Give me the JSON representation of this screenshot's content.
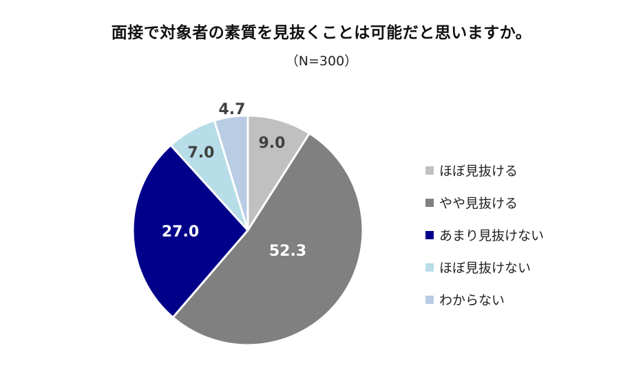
{
  "title": "面接で対象者の素質を見抜くことは可能だと思いますか。",
  "subtitle": "（N=300）",
  "chart_data": {
    "type": "pie",
    "start_angle_deg": 0,
    "direction": "clockwise",
    "legend_position": "right",
    "categories": [
      "ほぼ見抜ける",
      "やや見抜ける",
      "あまり見抜けない",
      "ほぼ見抜けない",
      "わからない"
    ],
    "values": [
      9.0,
      52.3,
      27.0,
      7.0,
      4.7
    ],
    "labels": [
      "9.0",
      "52.3",
      "27.0",
      "7.0",
      "4.7"
    ],
    "colors": [
      "#c0c0c0",
      "#808080",
      "#00008b",
      "#b7dde8",
      "#b8cce4"
    ],
    "label_colors": [
      "#404040",
      "#ffffff",
      "#ffffff",
      "#404040",
      "#404040"
    ]
  }
}
